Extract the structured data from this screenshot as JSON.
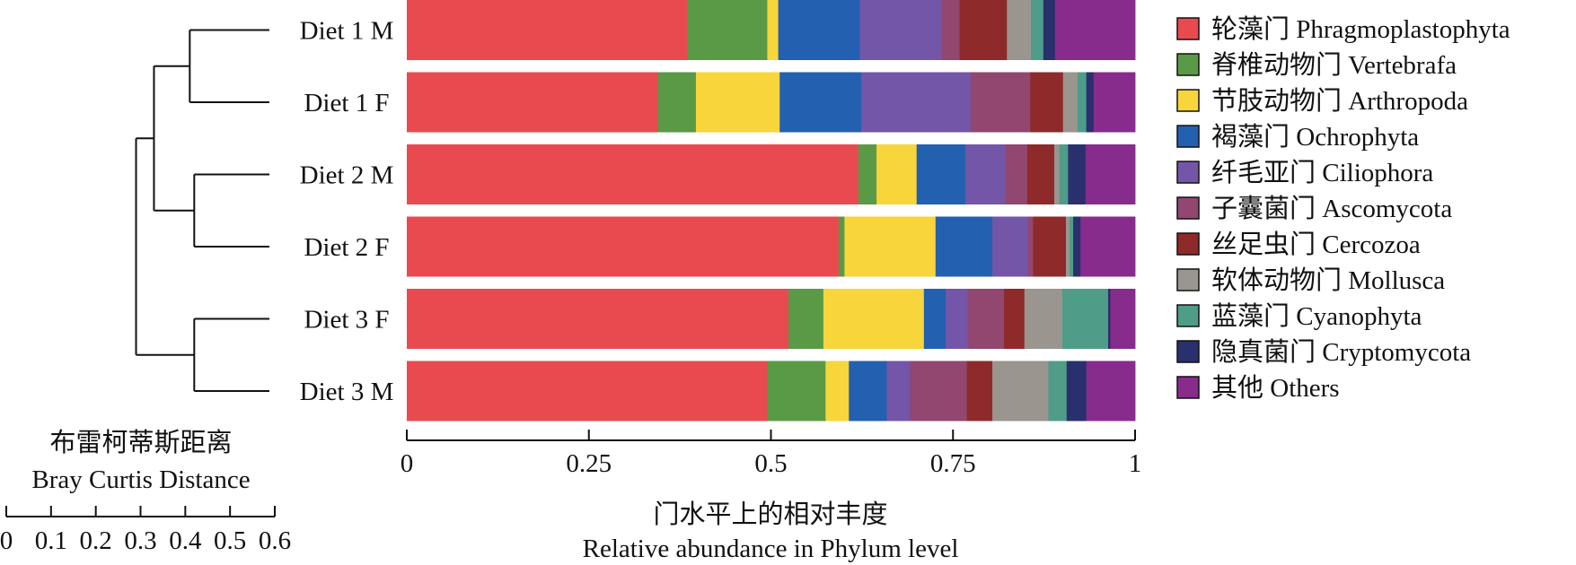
{
  "chart_data": {
    "type": "bar",
    "orientation": "horizontal",
    "stacked": true,
    "categories": [
      "Diet 1 M",
      "Diet 1 F",
      "Diet 2 M",
      "Diet 2 F",
      "Diet 3 F",
      "Diet 3 M"
    ],
    "series": [
      {
        "name": "轮藻门 Phragmoplastophyta",
        "color": "#e94a4f",
        "values": [
          0.385,
          0.345,
          0.62,
          0.593,
          0.524,
          0.495
        ]
      },
      {
        "name": "脊椎动物门 Vertebrafa",
        "color": "#5a9a46",
        "values": [
          0.11,
          0.052,
          0.025,
          0.008,
          0.048,
          0.08
        ]
      },
      {
        "name": "节肢动物门 Arthropoda",
        "color": "#f8d53b",
        "values": [
          0.015,
          0.115,
          0.055,
          0.125,
          0.138,
          0.032
        ]
      },
      {
        "name": "褐藻门 Ochrophyta",
        "color": "#2460b0",
        "values": [
          0.112,
          0.112,
          0.067,
          0.078,
          0.03,
          0.052
        ]
      },
      {
        "name": "纤毛亚门 Ciliophora",
        "color": "#7456a8",
        "values": [
          0.112,
          0.15,
          0.055,
          0.048,
          0.03,
          0.032
        ]
      },
      {
        "name": "子囊菌门 Ascomycota",
        "color": "#914770",
        "values": [
          0.025,
          0.082,
          0.03,
          0.008,
          0.05,
          0.078
        ]
      },
      {
        "name": "丝足虫门 Cercozoa",
        "color": "#8e2a2a",
        "values": [
          0.065,
          0.045,
          0.037,
          0.045,
          0.028,
          0.035
        ]
      },
      {
        "name": "软体动物门 Mollusca",
        "color": "#9a958f",
        "values": [
          0.033,
          0.02,
          0.007,
          0.005,
          0.052,
          0.077
        ]
      },
      {
        "name": "蓝藻门 Cyanophyta",
        "color": "#4f9c88",
        "values": [
          0.017,
          0.012,
          0.012,
          0.005,
          0.063,
          0.025
        ]
      },
      {
        "name": "隐真菌门 Cryptomycota",
        "color": "#2a2f6e",
        "values": [
          0.016,
          0.01,
          0.024,
          0.01,
          0.003,
          0.027
        ]
      },
      {
        "name": "其他 Others",
        "color": "#872b8d",
        "values": [
          0.11,
          0.057,
          0.068,
          0.075,
          0.034,
          0.067
        ]
      }
    ],
    "xlim": [
      0,
      1
    ],
    "xticks": [
      0,
      0.25,
      0.5,
      0.75,
      1
    ],
    "xtick_labels": [
      "0",
      "0.25",
      "0.5",
      "0.75",
      "1"
    ],
    "xlabel_cn": "门水平上的相对丰度",
    "xlabel_en": "Relative abundance in Phylum level",
    "dendrogram": {
      "label_cn": "布雷柯蒂斯距离",
      "label_en": "Bray Curtis Distance",
      "ticks": [
        0,
        0.1,
        0.2,
        0.3,
        0.4,
        0.5,
        0.6
      ],
      "tick_labels": [
        "0",
        "0.1",
        "0.2",
        "0.3",
        "0.4",
        "0.5",
        "0.6"
      ],
      "merges": [
        {
          "name": "diet1-cluster",
          "children": [
            0,
            1
          ],
          "height": 0.19
        },
        {
          "name": "diet2-cluster",
          "children": [
            2,
            3
          ],
          "height": 0.18
        },
        {
          "name": "diet3-cluster",
          "children": [
            4,
            5
          ],
          "height": 0.18
        },
        {
          "name": "diet12-cluster",
          "children": [
            "diet1-cluster",
            "diet2-cluster"
          ],
          "height": 0.27
        },
        {
          "name": "root",
          "children": [
            "diet12-cluster",
            "diet3-cluster"
          ],
          "height": 0.31
        }
      ]
    }
  }
}
